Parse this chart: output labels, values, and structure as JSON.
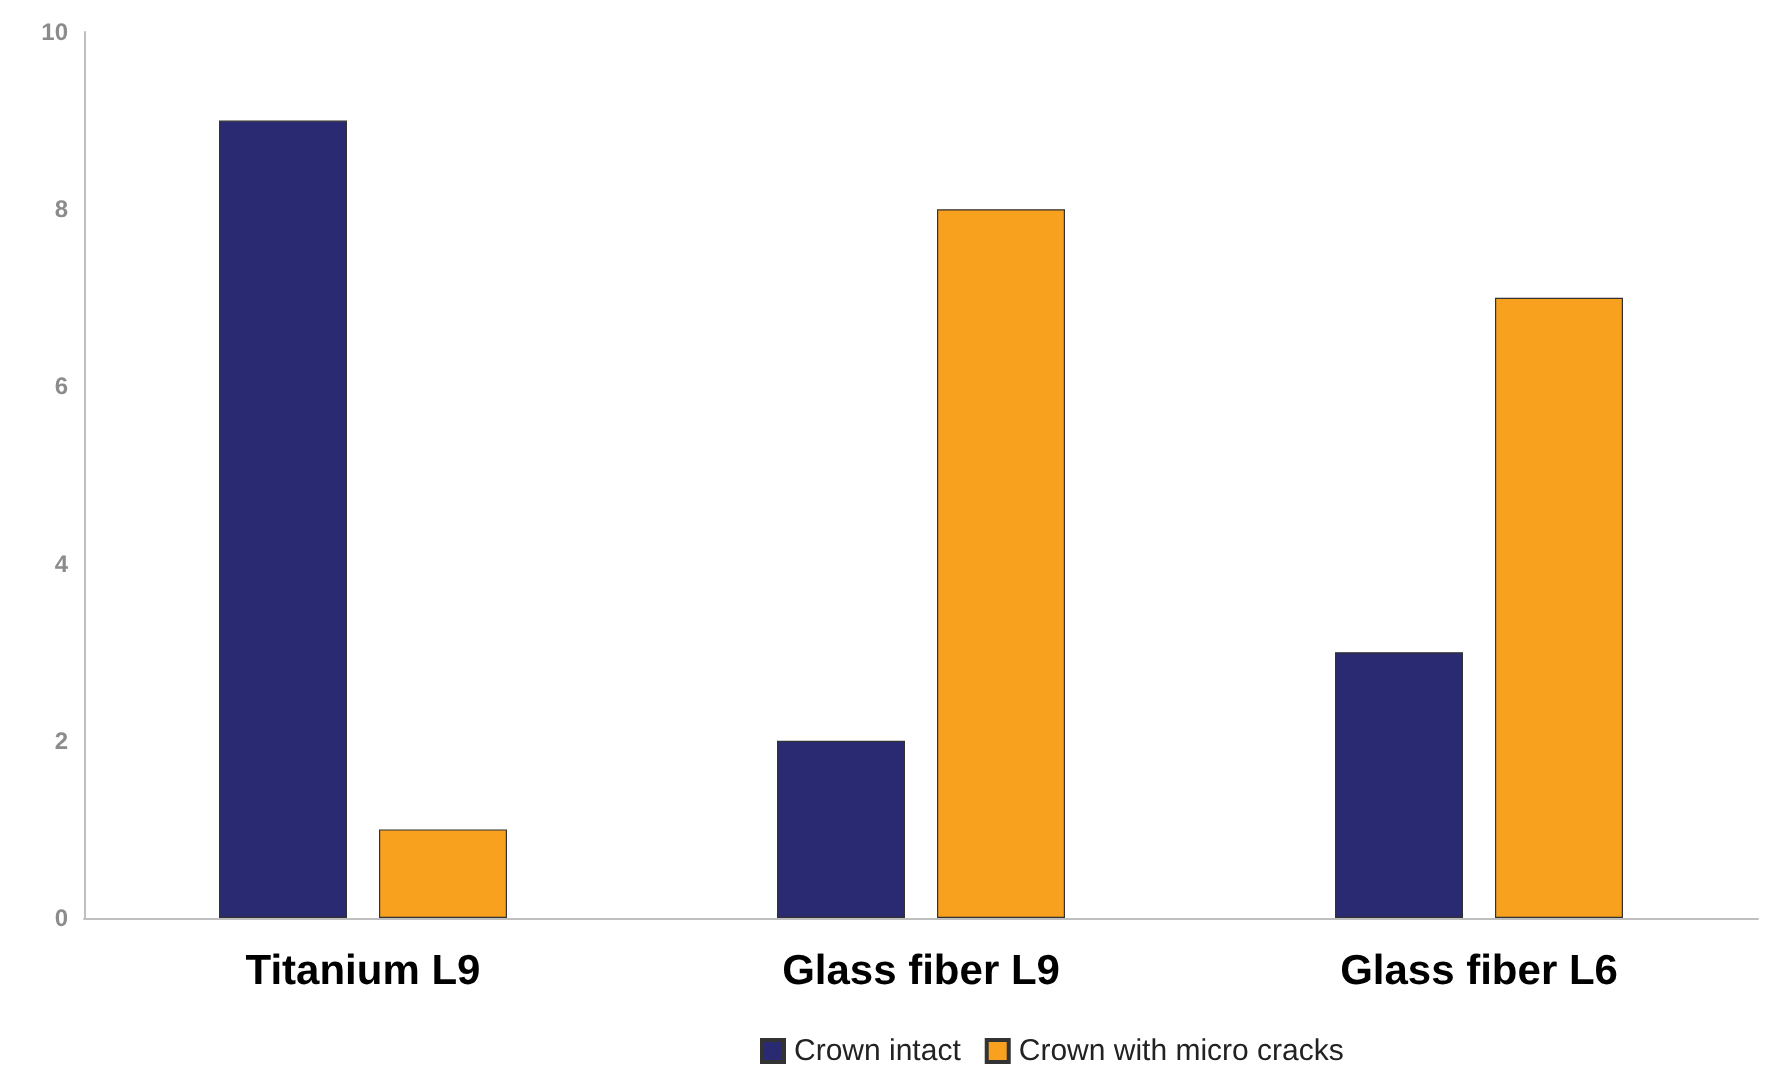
{
  "chart_data": {
    "type": "bar",
    "categories": [
      "Titanium L9",
      "Glass fiber L9",
      "Glass fiber L6"
    ],
    "series": [
      {
        "name": "Crown intact",
        "color": "#2a2a72",
        "values": [
          9,
          2,
          3
        ]
      },
      {
        "name": "Crown with micro cracks",
        "color": "#f7a11f",
        "values": [
          1,
          8,
          7
        ]
      }
    ],
    "ylim": [
      0,
      10
    ],
    "yticks": [
      0,
      2,
      4,
      6,
      8,
      10
    ],
    "grid": false,
    "legend": "bottom"
  }
}
